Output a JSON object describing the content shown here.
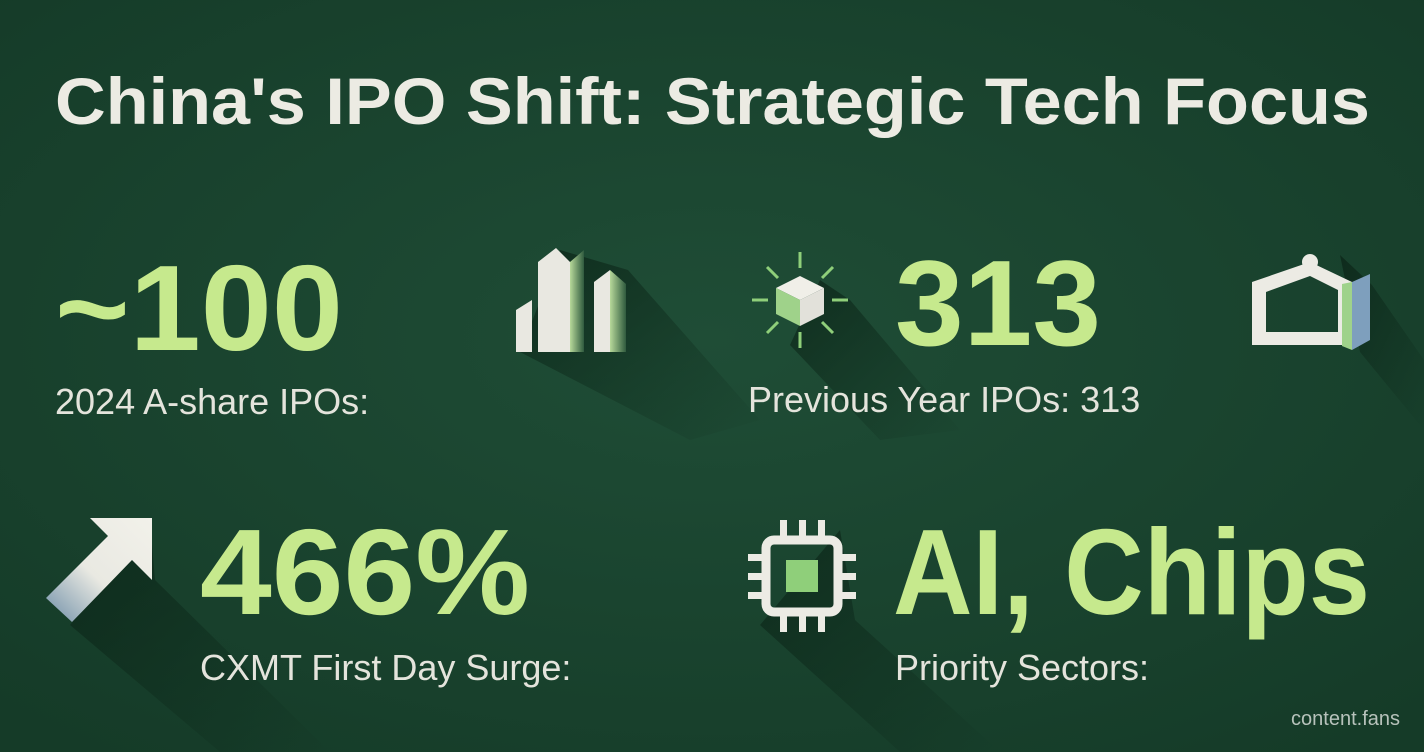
{
  "header": {
    "title": "China's IPO Shift: Strategic Tech Focus"
  },
  "stats": [
    {
      "value": "~100",
      "label": "2024 A-share IPOs:"
    },
    {
      "value": "313",
      "label": "Previous Year IPOs: 313"
    },
    {
      "value": "466%",
      "label": "CXMT First Day Surge:"
    },
    {
      "value": "AI, Chips",
      "label": "Priority Sectors:"
    }
  ],
  "footer": {
    "credit": "content.fans"
  }
}
